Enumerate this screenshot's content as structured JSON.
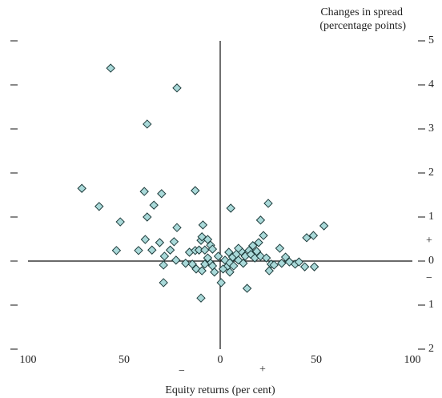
{
  "chart_data": {
    "type": "scatter",
    "title": "Changes in spread",
    "subtitle": "(percentage points)",
    "x_label": "Equity returns (per cent)",
    "annotations": [
      "+",
      "−",
      "−",
      "+"
    ],
    "color": "#a9d9d9",
    "xlim": [
      -100,
      100
    ],
    "ylim": [
      -2,
      5
    ],
    "xticks": [
      {
        "value": -100,
        "label": "100"
      },
      {
        "value": -50,
        "label": "50"
      },
      0,
      50,
      100
    ],
    "yticks": [
      {
        "value": -2,
        "label": "2"
      },
      {
        "value": -1,
        "label": "1"
      },
      0,
      1,
      2,
      3,
      4,
      5
    ],
    "x": [
      -57,
      -22.5,
      -38,
      -72,
      -13,
      -39.5,
      -30.5,
      25,
      -34.5,
      -63,
      -52,
      -38,
      21,
      54,
      -22.5,
      -9,
      5.5,
      -54,
      -42.5,
      -39,
      -31.5,
      -35.5,
      -26,
      -24,
      -29,
      -29.5,
      -29.5,
      -23,
      -16,
      -18,
      -13,
      -11,
      -10,
      -9.5,
      -6.5,
      -5,
      -4,
      -8,
      -6.5,
      -5,
      -4,
      -12.5,
      -9.5,
      -14.5,
      -8,
      -10,
      0.5,
      1.5,
      2.5,
      4,
      5,
      5,
      6.5,
      7,
      8.5,
      9.5,
      11,
      12,
      13,
      15,
      16,
      17,
      18,
      19,
      20,
      21,
      22.5,
      14,
      24,
      25.5,
      26.5,
      28,
      31,
      32,
      34,
      36,
      39,
      41,
      44,
      49,
      45,
      48.5,
      9.5,
      4.5,
      -1,
      -3
    ],
    "values": [
      4.38,
      3.93,
      3.11,
      1.65,
      1.6,
      1.58,
      1.53,
      1.31,
      1.27,
      1.24,
      0.89,
      1.0,
      0.93,
      0.8,
      0.76,
      0.82,
      1.2,
      0.24,
      0.24,
      0.49,
      0.42,
      0.25,
      0.25,
      0.44,
      0.11,
      -0.09,
      -0.49,
      0.02,
      0.2,
      -0.05,
      0.24,
      0.25,
      0.47,
      0.55,
      0.49,
      0.36,
      0.27,
      0.25,
      0.07,
      -0.05,
      -0.11,
      -0.18,
      -0.22,
      -0.07,
      -0.07,
      -0.84,
      -0.49,
      -0.18,
      0.02,
      -0.11,
      -0.04,
      -0.25,
      0.09,
      -0.11,
      0.16,
      0.02,
      0.22,
      -0.05,
      0.11,
      0.24,
      0.15,
      0.35,
      0.07,
      0.22,
      0.42,
      0.11,
      0.58,
      -0.62,
      0.07,
      -0.22,
      -0.07,
      -0.09,
      0.29,
      -0.05,
      0.09,
      -0.02,
      -0.07,
      -0.02,
      -0.13,
      -0.13,
      0.53,
      0.58,
      0.29,
      0.2,
      0.11,
      -0.25
    ]
  }
}
